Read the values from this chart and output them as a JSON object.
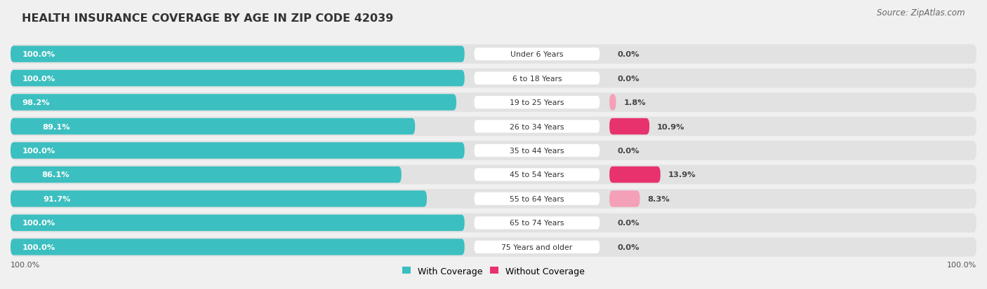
{
  "title": "HEALTH INSURANCE COVERAGE BY AGE IN ZIP CODE 42039",
  "source": "Source: ZipAtlas.com",
  "categories": [
    "Under 6 Years",
    "6 to 18 Years",
    "19 to 25 Years",
    "26 to 34 Years",
    "35 to 44 Years",
    "45 to 54 Years",
    "55 to 64 Years",
    "65 to 74 Years",
    "75 Years and older"
  ],
  "with_coverage": [
    100.0,
    100.0,
    98.2,
    89.1,
    100.0,
    86.1,
    91.7,
    100.0,
    100.0
  ],
  "without_coverage": [
    0.0,
    0.0,
    1.8,
    10.9,
    0.0,
    13.9,
    8.3,
    0.0,
    0.0
  ],
  "color_with": "#3cbfc0",
  "color_without_high": "#e8326e",
  "color_without_low": "#f4a0b8",
  "color_without_zero": "#f5c0d0",
  "bg_color": "#f0f0f0",
  "row_bg_color": "#e2e2e2",
  "label_box_color": "#ffffff",
  "title_fontsize": 11.5,
  "legend_fontsize": 9,
  "source_fontsize": 8.5
}
